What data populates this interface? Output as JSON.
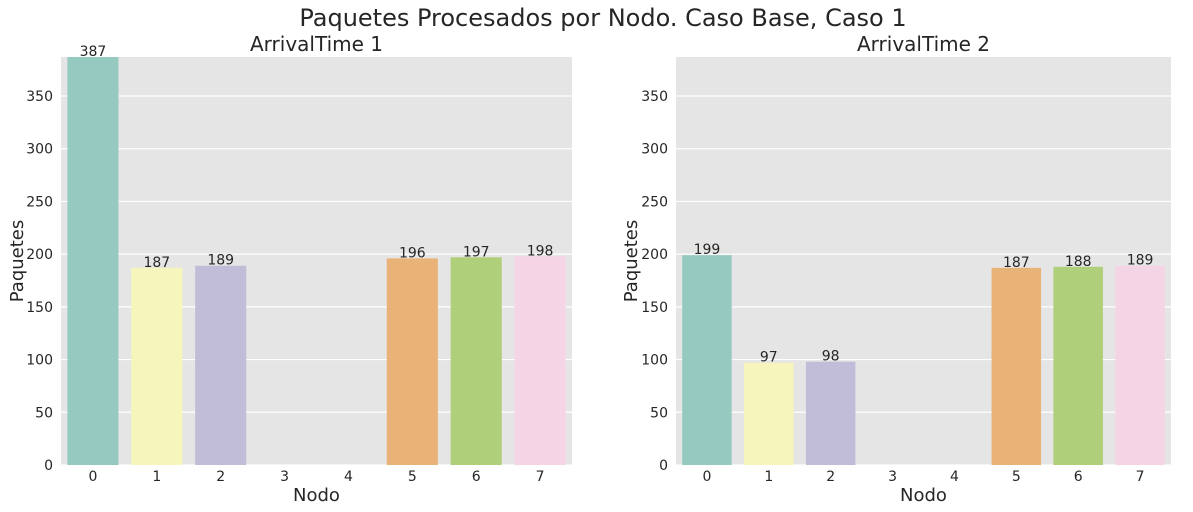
{
  "figure": {
    "suptitle": "Paquetes Procesados por Nodo. Caso Base, Caso 1"
  },
  "style": {
    "plot_background": "#e5e5e5",
    "grid_color": "#ffffff",
    "text_color": "#262626",
    "bar_colors": [
      "#96c9c0",
      "#f6f6bc",
      "#c1bdd8",
      "#e8795f",
      "#80a9c9",
      "#e9b277",
      "#afcf7a",
      "#f5d4e5"
    ]
  },
  "chart_data": [
    {
      "type": "bar",
      "title": "ArrivalTime 1",
      "xlabel": "Nodo",
      "ylabel": "Paquetes",
      "categories": [
        "0",
        "1",
        "2",
        "3",
        "4",
        "5",
        "6",
        "7"
      ],
      "values": [
        387,
        187,
        189,
        null,
        null,
        196,
        197,
        198
      ],
      "data_labels": [
        "387",
        "187",
        "189",
        "",
        "",
        "196",
        "197",
        "198"
      ],
      "ylim": [
        0,
        387
      ],
      "yticks": [
        0,
        50,
        100,
        150,
        200,
        250,
        300,
        350
      ],
      "ytick_labels": [
        "0",
        "50",
        "100",
        "150",
        "200",
        "250",
        "300",
        "350"
      ],
      "grid": true,
      "grid_axis": "y"
    },
    {
      "type": "bar",
      "title": "ArrivalTime 2",
      "xlabel": "Nodo",
      "ylabel": "Paquetes",
      "categories": [
        "0",
        "1",
        "2",
        "3",
        "4",
        "5",
        "6",
        "7"
      ],
      "values": [
        199,
        97,
        98,
        null,
        null,
        187,
        188,
        189
      ],
      "data_labels": [
        "199",
        "97",
        "98",
        "",
        "",
        "187",
        "188",
        "189"
      ],
      "ylim": [
        0,
        387
      ],
      "yticks": [
        0,
        50,
        100,
        150,
        200,
        250,
        300,
        350
      ],
      "ytick_labels": [
        "0",
        "50",
        "100",
        "150",
        "200",
        "250",
        "300",
        "350"
      ],
      "grid": true,
      "grid_axis": "y"
    }
  ]
}
